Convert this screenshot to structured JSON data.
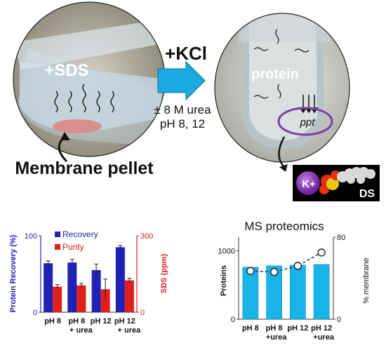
{
  "top": {
    "left_circle": {
      "label": "+SDS",
      "caption": "Membrane pellet"
    },
    "arrow": {
      "reagent": "+KCl",
      "condition_1": "± 8 M urea",
      "condition_2": "pH 8, 12"
    },
    "right_circle": {
      "protein_label": "protein",
      "precipitate_label": "ppt"
    },
    "salt_box": {
      "ion_label": "K+",
      "molecule_label": "DS"
    }
  },
  "colors": {
    "recovery": "#1f22b4",
    "purity": "#e0201a",
    "proteins_bar": "#1ab5e8",
    "membrane_line": "#1f3a93",
    "arrow_fill": "#1aa9e0",
    "ppt_ring": "#7b3fa8"
  },
  "chart_data": [
    {
      "type": "bar",
      "categories": [
        "pH 8",
        "pH 8\n+ urea",
        "pH 12",
        "pH 12\n+ urea"
      ],
      "category_lines": [
        [
          "pH 8"
        ],
        [
          "pH 8",
          "+ urea"
        ],
        [
          "pH 12"
        ],
        [
          "pH 12",
          "+ urea"
        ]
      ],
      "series": [
        {
          "name": "Recovery",
          "values": [
            64,
            65,
            55,
            85
          ],
          "errors": [
            3,
            4,
            8,
            2
          ],
          "axis": "left"
        },
        {
          "name": "Purity",
          "values": [
            100,
            105,
            90,
            125
          ],
          "errors": [
            8,
            8,
            40,
            8
          ],
          "axis": "right"
        }
      ],
      "ylabel": "Protein Recovery (%)",
      "y2label": "SDS (ppm)",
      "ylim": [
        0,
        100
      ],
      "y2lim": [
        0,
        300
      ],
      "yticks": [
        0,
        100
      ],
      "y2ticks": [
        0,
        300
      ],
      "legend_position": "top-left"
    },
    {
      "type": "bar",
      "title": "MS proteomics",
      "categories": [
        "pH 8",
        "pH 8\n+urea",
        "pH 12",
        "pH 12\n+urea"
      ],
      "category_lines": [
        [
          "pH 8"
        ],
        [
          "pH 8",
          "+urea"
        ],
        [
          "pH 12"
        ],
        [
          "pH 12",
          "+urea"
        ]
      ],
      "series": [
        {
          "name": "Proteins",
          "values": [
            760,
            780,
            790,
            800
          ],
          "axis": "left",
          "style": "bar"
        },
        {
          "name": "% membrane",
          "values": [
            47,
            46,
            52,
            65
          ],
          "axis": "right",
          "style": "dashed-line-markers"
        }
      ],
      "ylabel": "Proteins",
      "y2label": "% membrane",
      "ylim": [
        0,
        1200
      ],
      "y2lim": [
        0,
        80
      ],
      "yticks": [
        0,
        1000
      ],
      "y2ticks": [
        0,
        80
      ]
    }
  ]
}
